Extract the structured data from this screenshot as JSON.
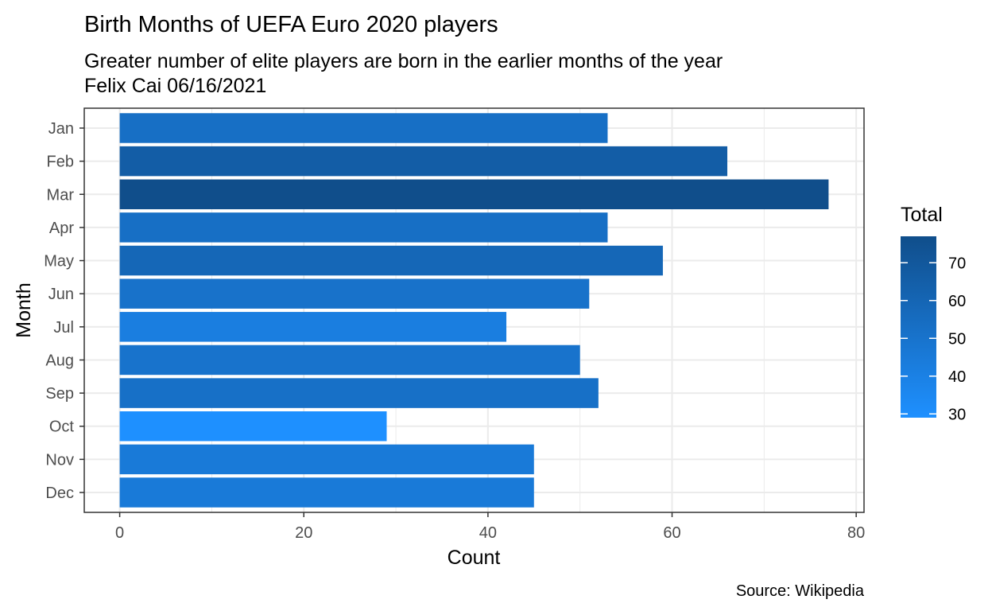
{
  "chart_data": {
    "type": "bar",
    "orientation": "horizontal",
    "title": "Birth Months of UEFA Euro 2020 players",
    "subtitle": [
      "Greater number of elite players are born in the earlier months of the year",
      "Felix Cai 06/16/2021"
    ],
    "caption": "Source: Wikipedia",
    "xlabel": "Count",
    "ylabel": "Month",
    "categories": [
      "Jan",
      "Feb",
      "Mar",
      "Apr",
      "May",
      "Jun",
      "Jul",
      "Aug",
      "Sep",
      "Oct",
      "Nov",
      "Dec"
    ],
    "values": [
      53,
      66,
      77,
      53,
      59,
      51,
      42,
      50,
      52,
      29,
      45,
      45
    ],
    "xlim": [
      -3.85,
      80.85
    ],
    "xticks": [
      0,
      20,
      40,
      60,
      80
    ],
    "grid": true,
    "legend": {
      "title": "Total",
      "position": "right",
      "ticks": [
        30,
        40,
        50,
        60,
        70
      ],
      "range": [
        29,
        77
      ]
    },
    "colors": {
      "low": "#1E90FF",
      "high": "#104E8B",
      "grid": "#EBEBEB",
      "panel_border": "#333333"
    }
  }
}
